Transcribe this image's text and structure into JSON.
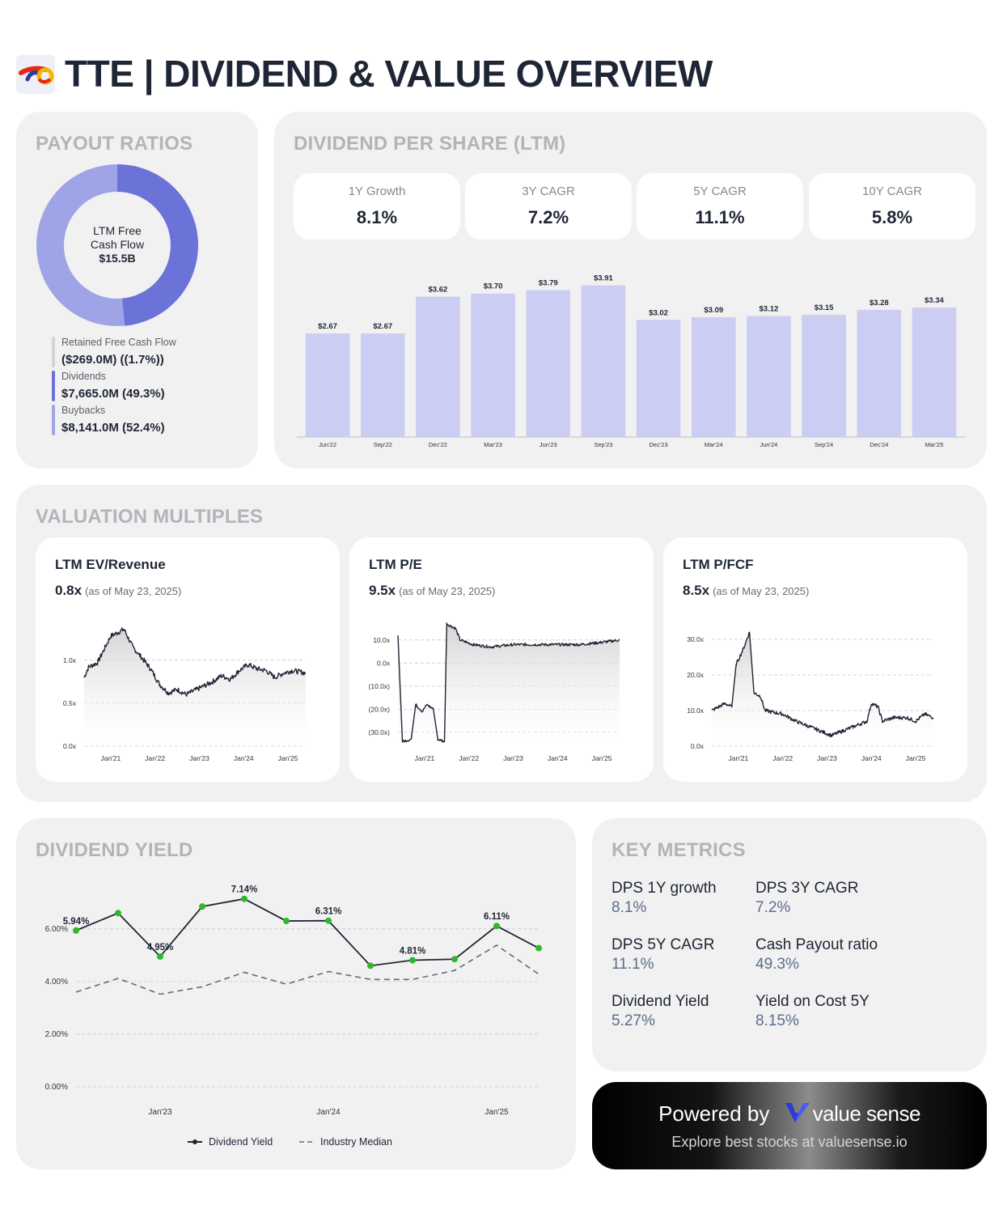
{
  "header": {
    "title": "TTE | DIVIDEND & VALUE OVERVIEW"
  },
  "payout": {
    "section_title": "PAYOUT RATIOS",
    "donut_center": {
      "line1": "LTM Free",
      "line2": "Cash Flow",
      "line3": "$15.5B"
    },
    "donut_dividends_fraction": 0.485,
    "legend": [
      {
        "label": "Retained Free Cash Flow",
        "value": "($269.0M) ((1.7%))",
        "color": "#d3d3d8"
      },
      {
        "label": "Dividends",
        "value": "$7,665.0M (49.3%)",
        "color": "#6b72d8"
      },
      {
        "label": "Buybacks",
        "value": "$8,141.0M (52.4%)",
        "color": "#9ea4e6"
      }
    ]
  },
  "dps": {
    "section_title": "DIVIDEND PER SHARE (LTM)",
    "metrics": [
      {
        "label": "1Y Growth",
        "value": "8.1%"
      },
      {
        "label": "3Y CAGR",
        "value": "7.2%"
      },
      {
        "label": "5Y CAGR",
        "value": "11.1%"
      },
      {
        "label": "10Y CAGR",
        "value": "5.8%"
      }
    ]
  },
  "valuation": {
    "section_title": "VALUATION MULTIPLES",
    "cards": [
      {
        "title": "LTM EV/Revenue",
        "value": "0.8x",
        "asof": "(as of May 23, 2025)"
      },
      {
        "title": "LTM P/E",
        "value": "9.5x",
        "asof": "(as of May 23, 2025)"
      },
      {
        "title": "LTM P/FCF",
        "value": "8.5x",
        "asof": "(as of May 23, 2025)"
      }
    ]
  },
  "yield": {
    "section_title": "DIVIDEND YIELD"
  },
  "key_metrics": {
    "section_title": "KEY METRICS",
    "items": [
      {
        "label": "DPS 1Y growth",
        "value": "8.1%"
      },
      {
        "label": "DPS 3Y CAGR",
        "value": "7.2%"
      },
      {
        "label": "DPS 5Y CAGR",
        "value": "11.1%"
      },
      {
        "label": "Cash Payout ratio",
        "value": "49.3%"
      },
      {
        "label": "Dividend Yield",
        "value": "5.27%"
      },
      {
        "label": "Yield on Cost 5Y",
        "value": "8.15%"
      }
    ]
  },
  "powered": {
    "prefix": "Powered by",
    "brand": "value sense",
    "tagline": "Explore best stocks at valuesense.io"
  },
  "chart_data": [
    {
      "id": "dps",
      "type": "bar",
      "categories": [
        "Jun'22",
        "Sep'22",
        "Dec'22",
        "Mar'23",
        "Jun'23",
        "Sep'23",
        "Dec'23",
        "Mar'24",
        "Jun'24",
        "Sep'24",
        "Dec'24",
        "Mar'25"
      ],
      "values": [
        2.67,
        2.67,
        3.62,
        3.7,
        3.79,
        3.91,
        3.02,
        3.09,
        3.12,
        3.15,
        3.28,
        3.34
      ],
      "labels": [
        "$2.67",
        "$2.67",
        "$3.62",
        "$3.70",
        "$3.79",
        "$3.91",
        "$3.02",
        "$3.09",
        "$3.12",
        "$3.15",
        "$3.28",
        "$3.34"
      ],
      "ylim": [
        0,
        4.3
      ],
      "color": "#cbcdf2"
    },
    {
      "id": "evrev",
      "type": "line",
      "x_ticks": [
        "Jan'21",
        "Jan'22",
        "Jan'23",
        "Jan'24",
        "Jan'25"
      ],
      "x_tick_pos": [
        0.5,
        1.5,
        2.5,
        3.5,
        4.5
      ],
      "xlim": [
        -0.1,
        4.9
      ],
      "y_ticks": [
        {
          "v": 0,
          "t": "0.0x"
        },
        {
          "v": 0.5,
          "t": "0.5x"
        },
        {
          "v": 1.0,
          "t": "1.0x"
        }
      ],
      "ylim": [
        0,
        1.45
      ],
      "anchors": [
        [
          -0.1,
          0.8
        ],
        [
          0.0,
          0.92
        ],
        [
          0.2,
          0.97
        ],
        [
          0.5,
          1.28
        ],
        [
          0.8,
          1.36
        ],
        [
          1.0,
          1.15
        ],
        [
          1.2,
          1.03
        ],
        [
          1.4,
          0.9
        ],
        [
          1.6,
          0.72
        ],
        [
          1.8,
          0.62
        ],
        [
          2.0,
          0.66
        ],
        [
          2.2,
          0.6
        ],
        [
          2.4,
          0.65
        ],
        [
          2.6,
          0.7
        ],
        [
          2.8,
          0.75
        ],
        [
          3.0,
          0.82
        ],
        [
          3.2,
          0.78
        ],
        [
          3.4,
          0.88
        ],
        [
          3.6,
          0.95
        ],
        [
          3.8,
          0.9
        ],
        [
          4.0,
          0.88
        ],
        [
          4.2,
          0.8
        ],
        [
          4.4,
          0.85
        ],
        [
          4.6,
          0.88
        ],
        [
          4.9,
          0.85
        ]
      ]
    },
    {
      "id": "pe",
      "type": "line",
      "x_ticks": [
        "Jan'21",
        "Jan'22",
        "Jan'23",
        "Jan'24",
        "Jan'25"
      ],
      "x_tick_pos": [
        0.5,
        1.5,
        2.5,
        3.5,
        4.5
      ],
      "xlim": [
        -0.1,
        4.9
      ],
      "y_ticks": [
        {
          "v": -30,
          "t": "(30.0x)"
        },
        {
          "v": -20,
          "t": "(20.0x)"
        },
        {
          "v": -10,
          "t": "(10.0x)"
        },
        {
          "v": 0,
          "t": "0.0x"
        },
        {
          "v": 10,
          "t": "10.0x"
        }
      ],
      "ylim": [
        -36,
        18
      ],
      "anchors": [
        [
          -0.1,
          12
        ],
        [
          0.0,
          -34
        ],
        [
          0.2,
          -33
        ],
        [
          0.3,
          -18
        ],
        [
          0.45,
          -21
        ],
        [
          0.55,
          -18
        ],
        [
          0.7,
          -20
        ],
        [
          0.8,
          -33
        ],
        [
          0.95,
          -34
        ],
        [
          1.0,
          17
        ],
        [
          1.2,
          15
        ],
        [
          1.3,
          10
        ],
        [
          1.6,
          8
        ],
        [
          2.0,
          7
        ],
        [
          2.5,
          8
        ],
        [
          3.0,
          8
        ],
        [
          3.5,
          8
        ],
        [
          4.0,
          8
        ],
        [
          4.5,
          9
        ],
        [
          4.9,
          10
        ]
      ]
    },
    {
      "id": "pfcf",
      "type": "line",
      "x_ticks": [
        "Jan'21",
        "Jan'22",
        "Jan'23",
        "Jan'24",
        "Jan'25"
      ],
      "x_tick_pos": [
        0.5,
        1.5,
        2.5,
        3.5,
        4.5
      ],
      "xlim": [
        -0.1,
        4.9
      ],
      "y_ticks": [
        {
          "v": 0,
          "t": "0.0x"
        },
        {
          "v": 10,
          "t": "10.0x"
        },
        {
          "v": 20,
          "t": "20.0x"
        },
        {
          "v": 30,
          "t": "30.0x"
        }
      ],
      "ylim": [
        0,
        35
      ],
      "anchors": [
        [
          -0.1,
          10
        ],
        [
          0.2,
          12
        ],
        [
          0.35,
          11
        ],
        [
          0.45,
          23
        ],
        [
          0.6,
          27
        ],
        [
          0.75,
          32
        ],
        [
          0.85,
          15
        ],
        [
          1.0,
          14
        ],
        [
          1.1,
          10
        ],
        [
          1.5,
          9
        ],
        [
          1.8,
          7
        ],
        [
          2.0,
          6
        ],
        [
          2.2,
          5
        ],
        [
          2.4,
          4
        ],
        [
          2.6,
          3
        ],
        [
          2.8,
          4
        ],
        [
          3.0,
          5
        ],
        [
          3.2,
          6
        ],
        [
          3.4,
          7
        ],
        [
          3.5,
          12
        ],
        [
          3.65,
          11
        ],
        [
          3.75,
          7
        ],
        [
          4.0,
          8
        ],
        [
          4.3,
          8
        ],
        [
          4.5,
          7
        ],
        [
          4.7,
          9
        ],
        [
          4.9,
          8
        ]
      ]
    },
    {
      "id": "yield",
      "type": "line",
      "x": [
        0,
        1,
        2,
        3,
        4,
        5,
        6,
        7,
        8,
        9,
        10,
        11
      ],
      "x_ticks": [
        "Jan'23",
        "Jan'24",
        "Jan'25"
      ],
      "x_tick_pos": [
        2,
        6,
        10
      ],
      "y_ticks": [
        {
          "v": 0,
          "t": "0.00%"
        },
        {
          "v": 2,
          "t": "2.00%"
        },
        {
          "v": 4,
          "t": "4.00%"
        },
        {
          "v": 6,
          "t": "6.00%"
        }
      ],
      "ylim": [
        0,
        7.5
      ],
      "series": [
        {
          "name": "Dividend Yield",
          "values": [
            5.94,
            6.6,
            4.95,
            6.85,
            7.14,
            6.3,
            6.31,
            4.6,
            4.81,
            4.85,
            6.11,
            5.27
          ],
          "point_labels": {
            "0": "5.94%",
            "2": "4.95%",
            "4": "7.14%",
            "6": "6.31%",
            "8": "4.81%",
            "10": "6.11%"
          }
        },
        {
          "name": "Industry Median",
          "values": [
            3.6,
            4.12,
            3.52,
            3.8,
            4.35,
            3.9,
            4.38,
            4.08,
            4.08,
            4.42,
            5.38,
            4.28
          ]
        }
      ]
    }
  ]
}
